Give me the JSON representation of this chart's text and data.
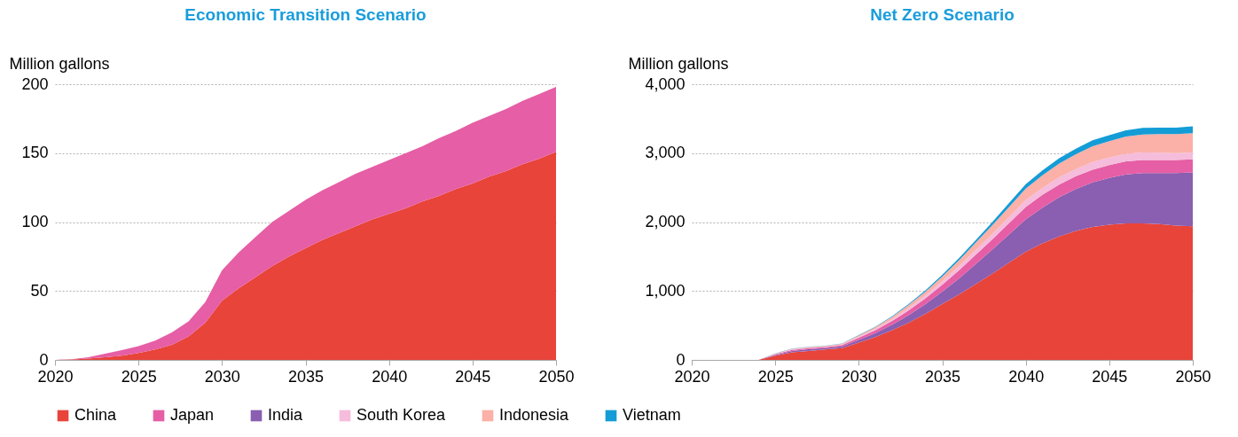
{
  "chart_data": [
    {
      "type": "area",
      "title": "Economic Transition Scenario",
      "ylabel": "Million gallons",
      "stacked": true,
      "grid": "y",
      "legend": "bottom",
      "x": [
        2020,
        2021,
        2022,
        2023,
        2024,
        2025,
        2026,
        2027,
        2028,
        2029,
        2030,
        2031,
        2032,
        2033,
        2034,
        2035,
        2036,
        2037,
        2038,
        2039,
        2040,
        2041,
        2042,
        2043,
        2044,
        2045,
        2046,
        2047,
        2048,
        2049,
        2050
      ],
      "xlim": [
        2020,
        2050
      ],
      "xticks": [
        2020,
        2025,
        2030,
        2035,
        2040,
        2045,
        2050
      ],
      "ylim": [
        0,
        200
      ],
      "yticks": [
        0,
        50,
        100,
        150,
        200
      ],
      "series": [
        {
          "name": "China",
          "color": "#e8443a",
          "values": [
            0,
            0.3,
            1,
            2,
            3,
            5,
            7.5,
            11,
            17,
            27,
            43,
            52,
            60,
            68,
            75,
            81,
            87,
            92,
            97,
            102,
            106,
            110,
            115,
            119,
            124,
            128,
            133,
            137,
            142,
            146,
            151
          ]
        },
        {
          "name": "Japan",
          "color": "#e65ea5",
          "values": [
            0,
            0.2,
            1,
            2.5,
            4,
            5,
            6.5,
            9,
            11,
            15,
            22,
            26,
            29,
            32,
            33,
            35,
            36,
            37,
            38,
            38,
            39,
            40,
            40,
            42,
            42,
            44,
            44,
            45,
            46,
            47,
            47
          ]
        }
      ]
    },
    {
      "type": "area",
      "title": "Net Zero Scenario",
      "ylabel": "Million gallons",
      "stacked": true,
      "grid": "y",
      "legend": "bottom",
      "x": [
        2020,
        2021,
        2022,
        2023,
        2024,
        2025,
        2026,
        2027,
        2028,
        2029,
        2030,
        2031,
        2032,
        2033,
        2034,
        2035,
        2036,
        2037,
        2038,
        2039,
        2040,
        2041,
        2042,
        2043,
        2044,
        2045,
        2046,
        2047,
        2048,
        2049,
        2050
      ],
      "xlim": [
        2020,
        2050
      ],
      "xticks": [
        2020,
        2025,
        2030,
        2035,
        2040,
        2045,
        2050
      ],
      "ylim": [
        0,
        4000
      ],
      "yticks": [
        0,
        {
          "value": 1000,
          "label": "1,000"
        },
        {
          "value": 2000,
          "label": "2,000"
        },
        {
          "value": 3000,
          "label": "3,000"
        },
        {
          "value": 4000,
          "label": "4,000"
        }
      ],
      "series": [
        {
          "name": "China",
          "color": "#e8443a",
          "values": [
            0,
            0,
            0,
            0,
            0,
            60,
            110,
            130,
            150,
            170,
            250,
            330,
            430,
            540,
            670,
            810,
            950,
            1100,
            1250,
            1410,
            1570,
            1690,
            1790,
            1870,
            1930,
            1960,
            1980,
            1980,
            1970,
            1950,
            1940
          ]
        },
        {
          "name": "India",
          "color": "#8a5eb0",
          "values": [
            0,
            0,
            0,
            0,
            0,
            10,
            20,
            25,
            20,
            25,
            40,
            60,
            80,
            110,
            140,
            180,
            230,
            290,
            350,
            410,
            470,
            520,
            570,
            610,
            645,
            680,
            710,
            730,
            740,
            760,
            780
          ]
        },
        {
          "name": "Japan",
          "color": "#e65ea5",
          "values": [
            0,
            0,
            0,
            0,
            0,
            10,
            15,
            15,
            15,
            20,
            30,
            40,
            55,
            70,
            85,
            100,
            120,
            135,
            150,
            165,
            180,
            185,
            185,
            185,
            185,
            185,
            190,
            190,
            190,
            190,
            190
          ]
        },
        {
          "name": "South Korea",
          "color": "#f5bcdc",
          "values": [
            0,
            0,
            0,
            0,
            0,
            5,
            8,
            8,
            8,
            10,
            15,
            20,
            25,
            35,
            40,
            50,
            60,
            70,
            80,
            90,
            100,
            100,
            105,
            105,
            110,
            110,
            110,
            110,
            105,
            100,
            100
          ]
        },
        {
          "name": "Indonesia",
          "color": "#fbb0a8",
          "values": [
            0,
            0,
            0,
            0,
            0,
            5,
            8,
            8,
            10,
            10,
            20,
            25,
            35,
            45,
            55,
            70,
            85,
            105,
            125,
            145,
            165,
            185,
            200,
            215,
            230,
            240,
            250,
            260,
            270,
            275,
            280
          ]
        },
        {
          "name": "Vietnam",
          "color": "#149cd6",
          "values": [
            0,
            0,
            0,
            0,
            0,
            2,
            3,
            3,
            3,
            4,
            5,
            8,
            10,
            15,
            20,
            25,
            30,
            35,
            45,
            55,
            65,
            70,
            75,
            80,
            85,
            85,
            90,
            95,
            95,
            95,
            100
          ]
        }
      ]
    }
  ]
}
